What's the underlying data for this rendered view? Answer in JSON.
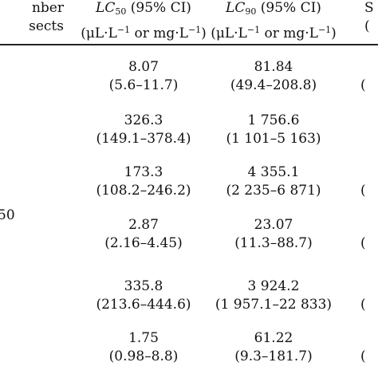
{
  "header": {
    "col_number": {
      "line1": "nber",
      "line2": "sects"
    },
    "col_lc50": {
      "lc": "LC",
      "sub": "50",
      "ci": " (95% CI)",
      "unit_pre": "(μL·L",
      "unit_mid": " or mg·L",
      "unit_post": ")",
      "exp": "−1"
    },
    "col_lc90": {
      "lc": "LC",
      "sub": "90",
      "ci": " (95% CI)",
      "unit_pre": "(μL·L",
      "unit_mid": " or mg·L",
      "unit_post": ")",
      "exp": "−1"
    },
    "col_slope": {
      "line1": "S",
      "line2": "("
    }
  },
  "left_label": "50",
  "rows": [
    {
      "lc50": "8.07",
      "lc50_ci": "(5.6–11.7)",
      "lc90": "81.84",
      "lc90_ci": "(49.4–208.8)",
      "slope": "("
    },
    {
      "lc50": "326.3",
      "lc50_ci": "(149.1–378.4)",
      "lc90": "1 756.6",
      "lc90_ci": "(1 101–5 163)",
      "slope": ""
    },
    {
      "lc50": "173.3",
      "lc50_ci": "(108.2–246.2)",
      "lc90": "4 355.1",
      "lc90_ci": "(2 235–6 871)",
      "slope": "("
    },
    {
      "lc50": "2.87",
      "lc50_ci": "(2.16–4.45)",
      "lc90": "23.07",
      "lc90_ci": "(11.3–88.7)",
      "slope": "("
    },
    {
      "lc50": "335.8",
      "lc50_ci": "(213.6–444.6)",
      "lc90": "3 924.2",
      "lc90_ci": "(1 957.1–22 833)",
      "slope": "("
    },
    {
      "lc50": "1.75",
      "lc50_ci": "(0.98–8.8)",
      "lc90": "61.22",
      "lc90_ci": "(9.3–181.7)",
      "slope": "("
    }
  ]
}
